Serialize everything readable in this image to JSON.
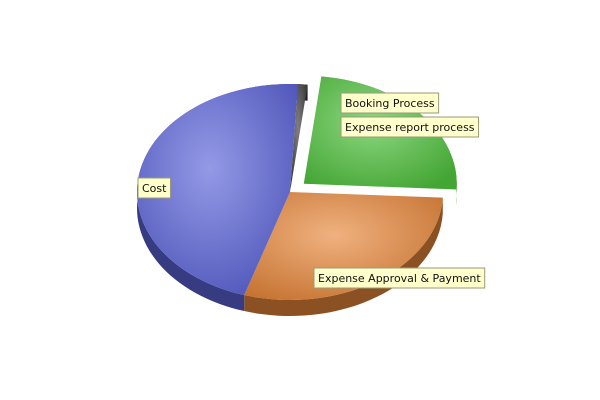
{
  "chart_data": {
    "type": "pie",
    "title": "",
    "legend": "none",
    "slices": [
      {
        "label": "Booking Process",
        "value": 1,
        "color": "#3a3a3a"
      },
      {
        "label": "Expense report process",
        "value": 24,
        "color": "#4fc23c"
      },
      {
        "label": "Expense Approval & Payment",
        "value": 29,
        "color": "#e8873a"
      },
      {
        "label": "Cost",
        "value": 46,
        "color": "#5b63d8"
      }
    ]
  }
}
